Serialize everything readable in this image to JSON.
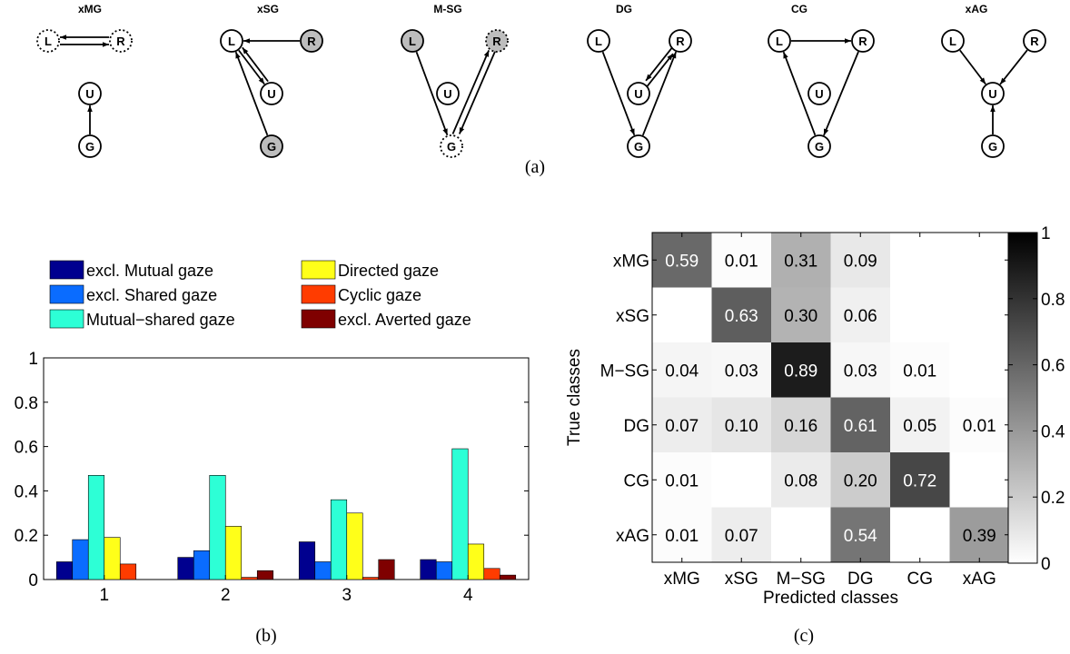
{
  "panel_labels": {
    "a": "(a)",
    "b": "(b)",
    "c": "(c)"
  },
  "colors": {
    "xMG": "#00008f",
    "xSG": "#0a6cff",
    "M-SG": "#2dffd6",
    "DG": "#ffff19",
    "CG": "#ff3c00",
    "xAG": "#7f0000",
    "node_shaded": "#bdbdbd"
  },
  "gaze_diagrams": [
    {
      "title": "xMG",
      "nodes": {
        "L": "L",
        "R": "R",
        "U": "U",
        "G": "G"
      }
    },
    {
      "title": "xSG",
      "nodes": {
        "L": "L",
        "R": "R",
        "U": "U",
        "G": "G"
      }
    },
    {
      "title": "M-SG",
      "nodes": {
        "L": "L",
        "R": "R",
        "U": "U",
        "G": "G"
      }
    },
    {
      "title": "DG",
      "nodes": {
        "L": "L",
        "R": "R",
        "U": "U",
        "G": "G"
      }
    },
    {
      "title": "CG",
      "nodes": {
        "L": "L",
        "R": "R",
        "U": "U",
        "G": "G"
      }
    },
    {
      "title": "xAG",
      "nodes": {
        "L": "L",
        "R": "R",
        "U": "U",
        "G": "G"
      }
    }
  ],
  "chart_data": [
    {
      "type": "bar",
      "categories": [
        "1",
        "2",
        "3",
        "4"
      ],
      "ylim": [
        0,
        1
      ],
      "yticks": [
        "0",
        "0.2",
        "0.4",
        "0.6",
        "0.8",
        "1"
      ],
      "legend_placement": "top",
      "series": [
        {
          "name": "excl. Mutual gaze",
          "key": "xMG",
          "values": [
            0.08,
            0.1,
            0.17,
            0.09
          ]
        },
        {
          "name": "excl. Shared gaze",
          "key": "xSG",
          "values": [
            0.18,
            0.13,
            0.08,
            0.08
          ]
        },
        {
          "name": "Mutual−shared gaze",
          "key": "M-SG",
          "values": [
            0.47,
            0.47,
            0.36,
            0.59
          ]
        },
        {
          "name": "Directed gaze",
          "key": "DG",
          "values": [
            0.19,
            0.24,
            0.3,
            0.16
          ]
        },
        {
          "name": "Cyclic gaze",
          "key": "CG",
          "values": [
            0.07,
            0.01,
            0.01,
            0.05
          ]
        },
        {
          "name": "excl. Averted gaze",
          "key": "xAG",
          "values": [
            0.0,
            0.04,
            0.09,
            0.02
          ]
        }
      ]
    },
    {
      "type": "heatmap",
      "xlabel": "Predicted classes",
      "ylabel": "True classes",
      "rows": [
        "xMG",
        "xSG",
        "M−SG",
        "DG",
        "CG",
        "xAG"
      ],
      "cols": [
        "xMG",
        "xSG",
        "M−SG",
        "DG",
        "CG",
        "xAG"
      ],
      "values": [
        [
          0.59,
          0.01,
          0.31,
          0.09,
          null,
          null
        ],
        [
          null,
          0.63,
          0.3,
          0.06,
          null,
          null
        ],
        [
          0.04,
          0.03,
          0.89,
          0.03,
          0.01,
          null
        ],
        [
          0.07,
          0.1,
          0.16,
          0.61,
          0.05,
          0.01
        ],
        [
          0.01,
          null,
          0.08,
          0.2,
          0.72,
          null
        ],
        [
          0.01,
          0.07,
          null,
          0.54,
          null,
          0.39
        ]
      ],
      "labels": [
        [
          "0.59",
          "0.01",
          "0.31",
          "0.09",
          "",
          ""
        ],
        [
          "",
          "0.63",
          "0.30",
          "0.06",
          "",
          ""
        ],
        [
          "0.04",
          "0.03",
          "0.89",
          "0.03",
          "0.01",
          ""
        ],
        [
          "0.07",
          "0.10",
          "0.16",
          "0.61",
          "0.05",
          "0.01"
        ],
        [
          "0.01",
          "",
          "0.08",
          "0.20",
          "0.72",
          ""
        ],
        [
          "0.01",
          "0.07",
          "",
          "0.54",
          "",
          "0.39"
        ]
      ],
      "colorbar": {
        "range": [
          0,
          1
        ],
        "ticks": [
          "0",
          "0.2",
          "0.4",
          "0.6",
          "0.8",
          "1"
        ]
      }
    }
  ]
}
